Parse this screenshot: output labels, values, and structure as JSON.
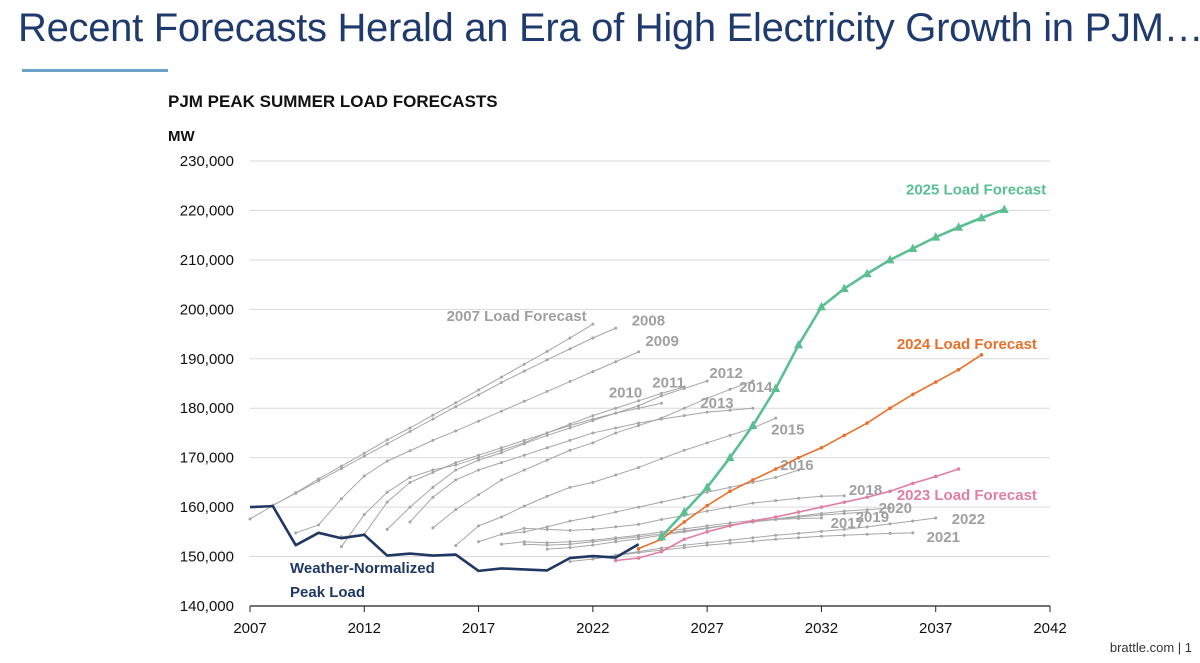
{
  "title": "Recent Forecasts Herald an Era of High Electricity Growth in PJM…",
  "footer": "brattle.com | 1",
  "chart_data": {
    "type": "line",
    "title": "PJM PEAK SUMMER LOAD FORECASTS",
    "ylabel": "MW",
    "xlabel": "",
    "xlim": [
      2007,
      2042
    ],
    "ylim": [
      140000,
      230000
    ],
    "xticks": [
      2007,
      2012,
      2017,
      2022,
      2027,
      2032,
      2037,
      2042
    ],
    "yticks": [
      140000,
      150000,
      160000,
      170000,
      180000,
      190000,
      200000,
      210000,
      220000,
      230000
    ],
    "ytick_labels": [
      "140,000",
      "150,000",
      "160,000",
      "170,000",
      "180,000",
      "190,000",
      "200,000",
      "210,000",
      "220,000",
      "230,000"
    ],
    "grid": "horizontal",
    "colors": {
      "actual": "#1f3864",
      "f2025": "#5bbf94",
      "f2024": "#e8702a",
      "f2023": "#e07fa0",
      "historical": "#a6a6a6"
    },
    "series": [
      {
        "name": "Weather-Normalized Peak Load",
        "color": "#1f3864",
        "start": 2007,
        "values": [
          160000,
          160200,
          152300,
          154800,
          153700,
          154400,
          150200,
          150600,
          150200,
          150400,
          147100,
          147600,
          147400,
          147200,
          149700,
          150100,
          149800,
          152500
        ]
      },
      {
        "name": "2025 Load Forecast",
        "color": "#5bbf94",
        "marker": "triangle",
        "start": 2025,
        "values": [
          154000,
          159000,
          164000,
          170000,
          176500,
          184000,
          192800,
          200500,
          204200,
          207200,
          210000,
          212300,
          214600,
          216600,
          218500,
          220200
        ]
      },
      {
        "name": "2024 Load Forecast",
        "color": "#e8702a",
        "start": 2024,
        "values": [
          151600,
          153500,
          157000,
          160300,
          163200,
          165500,
          167700,
          170000,
          172000,
          174500,
          177000,
          180000,
          182800,
          185300,
          187800,
          190800
        ]
      },
      {
        "name": "2023 Load Forecast",
        "color": "#e07fa0",
        "start": 2023,
        "values": [
          149200,
          149700,
          151000,
          153500,
          155000,
          156200,
          157200,
          158000,
          159000,
          160000,
          161000,
          162000,
          163200,
          164800,
          166200,
          167700
        ]
      },
      {
        "name": "2007 Load Forecast",
        "color": "#a6a6a6",
        "start": 2007,
        "values": [
          157600,
          160300,
          162900,
          165700,
          168300,
          170900,
          173600,
          176000,
          178600,
          181100,
          183700,
          186300,
          188900,
          191500,
          194200,
          197000
        ]
      },
      {
        "name": "2008",
        "color": "#a6a6a6",
        "start": 2008,
        "values": [
          160400,
          162800,
          165300,
          167800,
          170300,
          172800,
          175300,
          177800,
          180300,
          182700,
          185200,
          187500,
          189800,
          192000,
          194200,
          196200
        ]
      },
      {
        "name": "2009",
        "color": "#a6a6a6",
        "start": 2009,
        "values": [
          154800,
          156400,
          161700,
          166300,
          169300,
          171400,
          173500,
          175400,
          177400,
          179400,
          181400,
          183400,
          185400,
          187400,
          189400,
          191400
        ]
      },
      {
        "name": "2010",
        "color": "#a6a6a6",
        "start": 2011,
        "values": [
          152000,
          158500,
          163000,
          166000,
          167500,
          168500,
          170000,
          171500,
          173000,
          175000,
          176500,
          177800,
          179000,
          180000,
          181000
        ]
      },
      {
        "name": "2011",
        "color": "#a6a6a6",
        "start": 2011,
        "values": [
          154000,
          154500,
          161000,
          165000,
          167000,
          169000,
          170500,
          172000,
          173500,
          175000,
          176800,
          178500,
          180000,
          181500,
          183000,
          184300
        ]
      },
      {
        "name": "2012",
        "color": "#a6a6a6",
        "start": 2013,
        "values": [
          155500,
          160000,
          164000,
          167500,
          169500,
          171000,
          172800,
          174500,
          176000,
          177500,
          179000,
          180500,
          182500,
          184000,
          185500
        ]
      },
      {
        "name": "2013",
        "color": "#a6a6a6",
        "start": 2014,
        "values": [
          157000,
          162000,
          165500,
          167500,
          169000,
          170500,
          172000,
          173500,
          175000,
          176000,
          177000,
          177800,
          178500,
          179200,
          179600,
          180000
        ]
      },
      {
        "name": "2014",
        "color": "#a6a6a6",
        "start": 2015,
        "values": [
          155800,
          159500,
          162500,
          165500,
          167500,
          169500,
          171500,
          173000,
          175000,
          176500,
          178000,
          180000,
          182000,
          183800,
          185500
        ]
      },
      {
        "name": "2015",
        "color": "#a6a6a6",
        "start": 2016,
        "values": [
          152200,
          156200,
          158000,
          160200,
          162200,
          164000,
          165000,
          166500,
          168000,
          169800,
          171500,
          173000,
          174500,
          176000,
          178000
        ]
      },
      {
        "name": "2016",
        "color": "#a6a6a6",
        "start": 2017,
        "values": [
          153000,
          154500,
          155000,
          156000,
          157200,
          158000,
          159000,
          160000,
          161000,
          162000,
          163000,
          164000,
          165000,
          166000,
          167500
        ]
      },
      {
        "name": "2017",
        "color": "#a6a6a6",
        "start": 2018,
        "values": [
          152500,
          153000,
          152800,
          153000,
          153300,
          153800,
          154300,
          155000,
          155600,
          156200,
          156800,
          157300,
          157500,
          157700,
          157800
        ]
      },
      {
        "name": "2018",
        "color": "#a6a6a6",
        "start": 2018,
        "values": [
          154500,
          155700,
          155500,
          155300,
          155500,
          156000,
          156500,
          157500,
          158300,
          159200,
          160000,
          160800,
          161300,
          161800,
          162200,
          162300
        ]
      },
      {
        "name": "2019",
        "color": "#a6a6a6",
        "start": 2019,
        "values": [
          152500,
          152300,
          152500,
          153000,
          153500,
          154000,
          154600,
          155200,
          155800,
          156400,
          157000,
          157500,
          158000,
          158400,
          158700,
          159000
        ]
      },
      {
        "name": "2020",
        "color": "#a6a6a6",
        "start": 2020,
        "values": [
          151500,
          151800,
          152300,
          153000,
          153600,
          154300,
          155000,
          155700,
          156400,
          157000,
          157600,
          158200,
          158700,
          159200,
          159500,
          159800
        ]
      },
      {
        "name": "2021",
        "color": "#a6a6a6",
        "start": 2021,
        "values": [
          149000,
          149500,
          150200,
          150800,
          151300,
          151800,
          152300,
          152700,
          153100,
          153500,
          153800,
          154100,
          154300,
          154500,
          154700,
          154800
        ]
      },
      {
        "name": "2022",
        "color": "#a6a6a6",
        "start": 2022,
        "values": [
          149500,
          150300,
          151000,
          151700,
          152300,
          152800,
          153300,
          153800,
          154300,
          154700,
          155100,
          155500,
          156000,
          156600,
          157200,
          157800
        ]
      }
    ],
    "labels": {
      "actual_line1": "Weather-Normalized",
      "actual_line2": "Peak Load"
    }
  }
}
